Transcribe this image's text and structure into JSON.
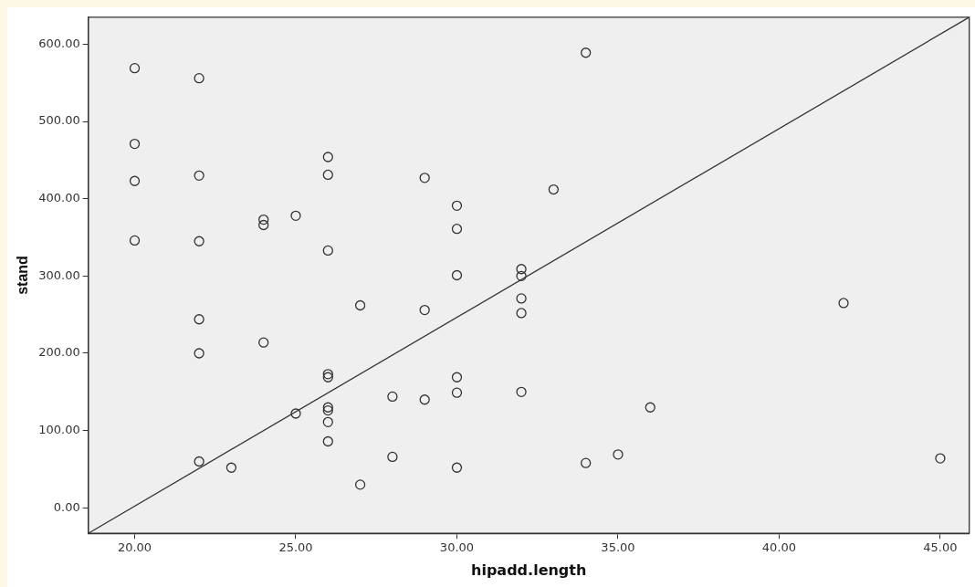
{
  "chart_data": {
    "type": "scatter",
    "xlabel": "hipadd.length",
    "ylabel": "stand",
    "xlim": [
      18.56,
      45.9
    ],
    "ylim": [
      -33,
      635
    ],
    "xticks": [
      {
        "value": 20,
        "label": "20.00"
      },
      {
        "value": 25,
        "label": "25.00"
      },
      {
        "value": 30,
        "label": "30.00"
      },
      {
        "value": 35,
        "label": "35.00"
      },
      {
        "value": 40,
        "label": "40.00"
      },
      {
        "value": 45,
        "label": "45.00"
      }
    ],
    "yticks": [
      {
        "value": 0,
        "label": "0.00"
      },
      {
        "value": 100,
        "label": "100.00"
      },
      {
        "value": 200,
        "label": "200.00"
      },
      {
        "value": 300,
        "label": "300.00"
      },
      {
        "value": 400,
        "label": "400.00"
      },
      {
        "value": 500,
        "label": "500.00"
      },
      {
        "value": 600,
        "label": "600.00"
      }
    ],
    "grid": false,
    "legend": false,
    "marker": "circle",
    "series": [
      {
        "color": "#333333",
        "x": [
          20,
          20,
          20,
          20,
          22,
          22,
          22,
          22,
          22,
          22,
          23,
          24,
          24,
          24,
          25,
          25,
          26,
          26,
          26,
          26,
          26,
          26,
          26,
          26,
          26,
          27,
          27,
          28,
          28,
          29,
          29,
          29,
          30,
          30,
          30,
          30,
          30,
          30,
          32,
          32,
          32,
          32,
          32,
          33,
          34,
          34,
          35,
          36,
          42,
          45
        ],
        "values": [
          569,
          471,
          423,
          346,
          556,
          430,
          345,
          244,
          200,
          60,
          52,
          373,
          366,
          214,
          378,
          122,
          454,
          431,
          333,
          173,
          169,
          130,
          126,
          111,
          86,
          262,
          30,
          144,
          66,
          427,
          256,
          140,
          391,
          361,
          301,
          169,
          149,
          52,
          309,
          271,
          252,
          150,
          300,
          412,
          589,
          58,
          69,
          130,
          265,
          64
        ]
      },
      {
        "type": "line",
        "color": "#333333",
        "marker": "none",
        "line_style": "solid",
        "x": [
          18.56,
          45.9
        ],
        "values": [
          -33,
          635
        ]
      }
    ]
  }
}
